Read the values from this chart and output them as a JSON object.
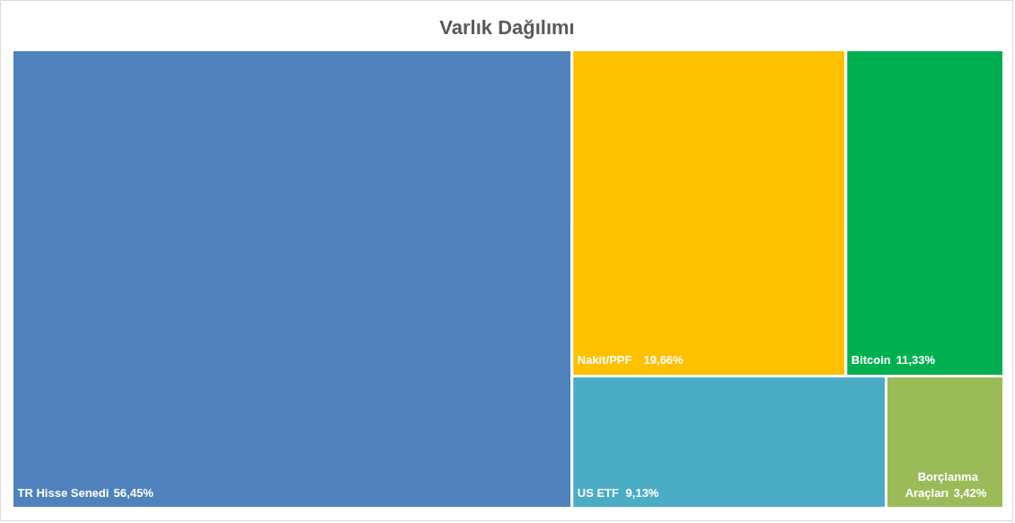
{
  "chart_data": {
    "type": "other",
    "title": "Varlık Dağılımı",
    "categories": [
      "TR Hisse Senedi",
      "Nakit/PPF",
      "Bitcoin",
      "US ETF",
      "Borçlanma Araçları"
    ],
    "values": [
      56.45,
      19.66,
      11.33,
      9.13,
      3.42
    ],
    "value_labels": [
      "56,45%",
      "19,66%",
      "11,33%",
      "9,13%",
      "3,42%"
    ],
    "colors": [
      "#4f81bd",
      "#ffc000",
      "#00b050",
      "#4bacc6",
      "#9bbb59"
    ]
  }
}
